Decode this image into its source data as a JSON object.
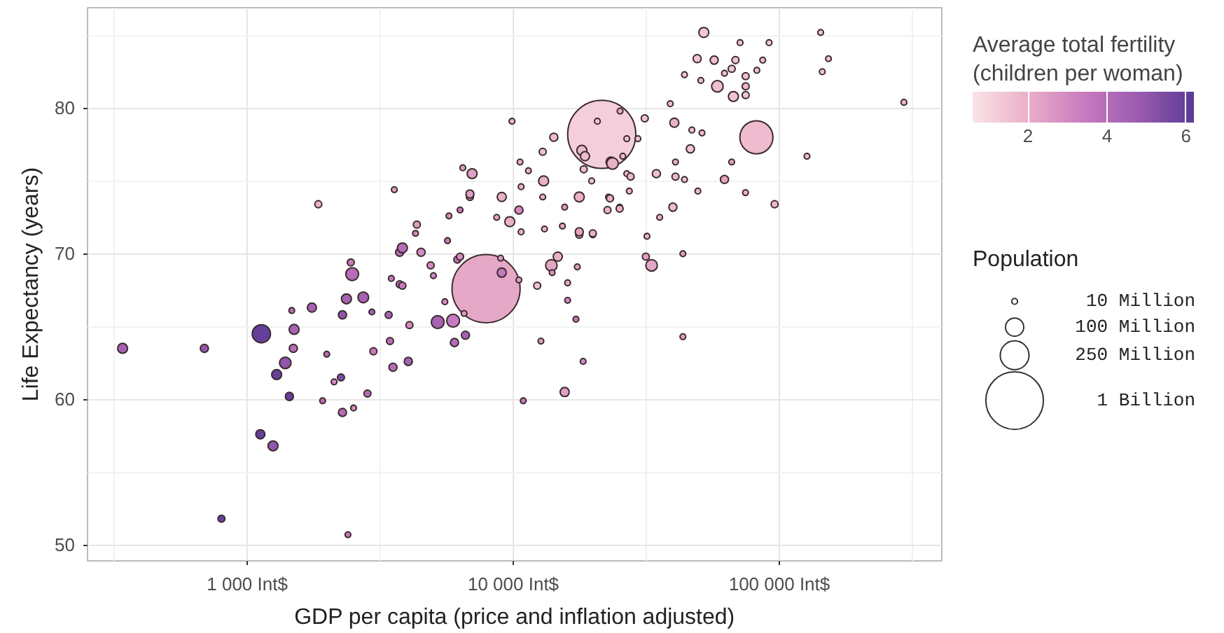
{
  "chart_data": {
    "type": "bubble",
    "xlabel": "GDP per capita (price and inflation adjusted)",
    "ylabel": "Life Expectancy (years)",
    "clabel": "Average total fertility\n(children per woman)",
    "legend_title": "Population",
    "log": "x",
    "xlim": [
      251,
      408000
    ],
    "xticks": [
      {
        "value": 1000,
        "label": "1 000 Int$"
      },
      {
        "value": 10000,
        "label": "10 000 Int$"
      },
      {
        "value": 100000,
        "label": "100 000 Int$"
      }
    ],
    "ylim": [
      48.9,
      86.9
    ],
    "yticks": [
      50,
      60,
      70,
      80
    ],
    "clim": [
      0.6,
      6.2
    ],
    "cticks": [
      2,
      4,
      6
    ],
    "size_legend": [
      {
        "value": 10,
        "label": "10 Million"
      },
      {
        "value": 100,
        "label": "100 Million"
      },
      {
        "value": 250,
        "label": "250 Million"
      },
      {
        "value": 1000,
        "label": "1 Billion"
      }
    ],
    "grid": true,
    "marker": "circle",
    "x": [
      7900,
      21500,
      82000,
      340,
      690,
      1130,
      1500,
      1490,
      1290,
      1390,
      1440,
      1120,
      1250,
      800,
      2390,
      1470,
      1750,
      2480,
      2450,
      2360,
      2730,
      2940,
      2280,
      3400,
      1990,
      2830,
      2280,
      2510,
      1920,
      2250,
      2120,
      2980,
      3440,
      3530,
      3740,
      3740,
      3570,
      3830,
      3480,
      3830,
      4070,
      4030,
      4340,
      4290,
      4500,
      4890,
      5010,
      5660,
      6160,
      6310,
      5530,
      5200,
      5940,
      6010,
      6610,
      6530,
      5730,
      6310,
      6870,
      7000,
      6460,
      8960,
      9050,
      10500,
      12300,
      13900,
      14700,
      14000,
      17400,
      16000,
      17200,
      12700,
      18300,
      15600,
      10900,
      9050,
      9700,
      8660,
      10500,
      10700,
      10600,
      11400,
      13000,
      13100,
      15300,
      15600,
      17700,
      17700,
      19900,
      22800,
      22600,
      25100,
      19700,
      18100,
      23300,
      20700,
      25200,
      31200,
      38900,
      40300,
      46900,
      51200,
      46300,
      127000,
      294000,
      26700,
      29400,
      18600,
      23600,
      25800,
      26700,
      27600,
      34500,
      40700,
      40700,
      44000,
      62200,
      66200,
      74600,
      96000,
      49400,
      39800,
      35500,
      27300,
      23100,
      25100,
      17700,
      19900,
      31800,
      33100,
      31500,
      43400,
      16000,
      43400,
      52000,
      49100,
      56900,
      71200,
      91500,
      143000,
      153000,
      145000,
      86600,
      44000,
      50700,
      58500,
      66200,
      68400,
      74700,
      74700,
      67200,
      74700,
      82300,
      62200,
      1850,
      9890,
      14200,
      12900,
      10700,
      12900,
      6870,
      18400
    ],
    "values": [
      67.6,
      78.2,
      78.0,
      63.5,
      63.5,
      64.5,
      64.8,
      63.5,
      61.7,
      62.5,
      60.2,
      57.6,
      56.8,
      51.8,
      50.7,
      66.1,
      66.3,
      68.6,
      69.4,
      66.9,
      67.0,
      66.0,
      65.8,
      65.8,
      63.1,
      60.4,
      59.1,
      59.4,
      59.9,
      61.5,
      61.2,
      63.3,
      64.0,
      62.2,
      70.1,
      67.9,
      74.4,
      70.4,
      68.3,
      67.8,
      65.1,
      62.6,
      72.0,
      71.4,
      70.1,
      69.2,
      68.5,
      70.9,
      69.6,
      69.8,
      66.7,
      65.3,
      65.4,
      63.9,
      64.4,
      65.9,
      72.6,
      73.0,
      73.9,
      75.5,
      75.9,
      69.7,
      68.7,
      68.2,
      67.8,
      69.2,
      69.8,
      68.7,
      69.1,
      66.8,
      65.5,
      64.0,
      62.6,
      60.5,
      59.9,
      73.9,
      72.2,
      72.5,
      73.0,
      71.5,
      76.3,
      75.7,
      75.0,
      71.7,
      71.9,
      73.2,
      73.9,
      71.3,
      71.3,
      73.9,
      73.0,
      73.2,
      75.0,
      77.1,
      76.3,
      79.1,
      79.8,
      79.3,
      80.3,
      79.0,
      78.5,
      78.3,
      77.2,
      76.7,
      80.4,
      77.9,
      77.9,
      76.7,
      76.2,
      76.7,
      75.5,
      75.3,
      75.5,
      76.3,
      75.3,
      75.1,
      75.1,
      76.3,
      74.2,
      73.4,
      74.3,
      73.2,
      72.5,
      74.3,
      73.8,
      73.1,
      71.5,
      71.4,
      71.2,
      69.2,
      69.8,
      70.0,
      68.0,
      64.3,
      85.2,
      83.4,
      83.3,
      84.5,
      84.5,
      85.2,
      83.4,
      82.5,
      83.3,
      82.3,
      81.9,
      81.5,
      82.7,
      83.3,
      82.2,
      81.5,
      80.8,
      80.9,
      82.6,
      82.4,
      73.4,
      79.1,
      78.0,
      77.0,
      74.6,
      73.9,
      74.1,
      75.8
    ],
    "sizes": [
      1400,
      1400,
      330,
      30,
      20,
      100,
      30,
      20,
      30,
      40,
      20,
      25,
      30,
      15,
      10,
      10,
      25,
      50,
      15,
      30,
      35,
      10,
      20,
      15,
      10,
      15,
      20,
      10,
      10,
      15,
      10,
      15,
      15,
      20,
      20,
      15,
      10,
      30,
      10,
      15,
      15,
      20,
      15,
      10,
      20,
      15,
      10,
      10,
      15,
      15,
      10,
      50,
      50,
      20,
      20,
      10,
      10,
      10,
      15,
      30,
      10,
      10,
      25,
      10,
      15,
      40,
      25,
      10,
      10,
      10,
      10,
      10,
      10,
      25,
      10,
      25,
      30,
      10,
      20,
      10,
      10,
      10,
      30,
      10,
      10,
      10,
      30,
      15,
      10,
      10,
      15,
      10,
      10,
      30,
      30,
      10,
      10,
      15,
      10,
      25,
      10,
      10,
      20,
      10,
      10,
      10,
      10,
      25,
      40,
      10,
      10,
      15,
      20,
      10,
      15,
      10,
      20,
      10,
      10,
      15,
      10,
      20,
      10,
      10,
      15,
      15,
      20,
      15,
      10,
      40,
      15,
      10,
      10,
      10,
      30,
      20,
      20,
      10,
      10,
      10,
      10,
      10,
      10,
      10,
      10,
      40,
      15,
      15,
      15,
      15,
      30,
      15,
      10,
      10,
      15,
      10,
      20,
      15,
      10,
      10,
      20,
      15
    ],
    "cvalues": [
      2.2,
      1.2,
      1.7,
      4.5,
      5,
      6,
      4.5,
      4,
      6,
      5,
      6,
      6,
      5,
      6,
      3.5,
      4,
      4.5,
      4,
      3.5,
      4.5,
      4.5,
      4.5,
      5,
      4.5,
      4,
      4,
      4,
      3,
      4,
      5.5,
      3,
      3.5,
      4,
      4,
      4,
      4,
      2.5,
      4,
      3.5,
      3.5,
      3,
      4.5,
      2.5,
      3,
      3,
      3,
      3,
      3.5,
      4,
      3,
      3,
      4.5,
      3.5,
      4,
      4.5,
      2.5,
      3,
      3.5,
      3,
      2.5,
      2.5,
      2.5,
      3.5,
      2.5,
      1.5,
      2.3,
      2,
      2.8,
      2.5,
      3,
      3.5,
      2.5,
      3,
      2.5,
      3.5,
      2,
      2,
      2.2,
      3,
      2,
      2,
      2,
      2,
      2,
      2.3,
      2.5,
      2,
      2,
      2,
      2,
      2,
      2,
      1.5,
      1.8,
      1.5,
      1.5,
      2,
      1.5,
      1.8,
      2,
      1.5,
      1.7,
      1.5,
      1.7,
      1.8,
      1.6,
      1.6,
      1.7,
      2,
      1.7,
      1.7,
      1.8,
      1.6,
      2,
      1.8,
      1.5,
      2.3,
      2.5,
      2,
      1.9,
      1.7,
      1.7,
      2,
      2,
      2,
      2,
      2.3,
      2,
      2,
      2.3,
      2.5,
      2.5,
      2.2,
      2.5,
      1.4,
      1.5,
      1.6,
      1.5,
      1.3,
      1.5,
      1.7,
      1.5,
      1.6,
      1.5,
      1.7,
      1.6,
      1.5,
      1.5,
      1.6,
      1.8,
      1.5,
      1.4,
      1.6,
      1.5,
      2,
      1.8,
      1.7,
      1.6,
      2,
      2,
      2.5,
      1.7
    ]
  }
}
